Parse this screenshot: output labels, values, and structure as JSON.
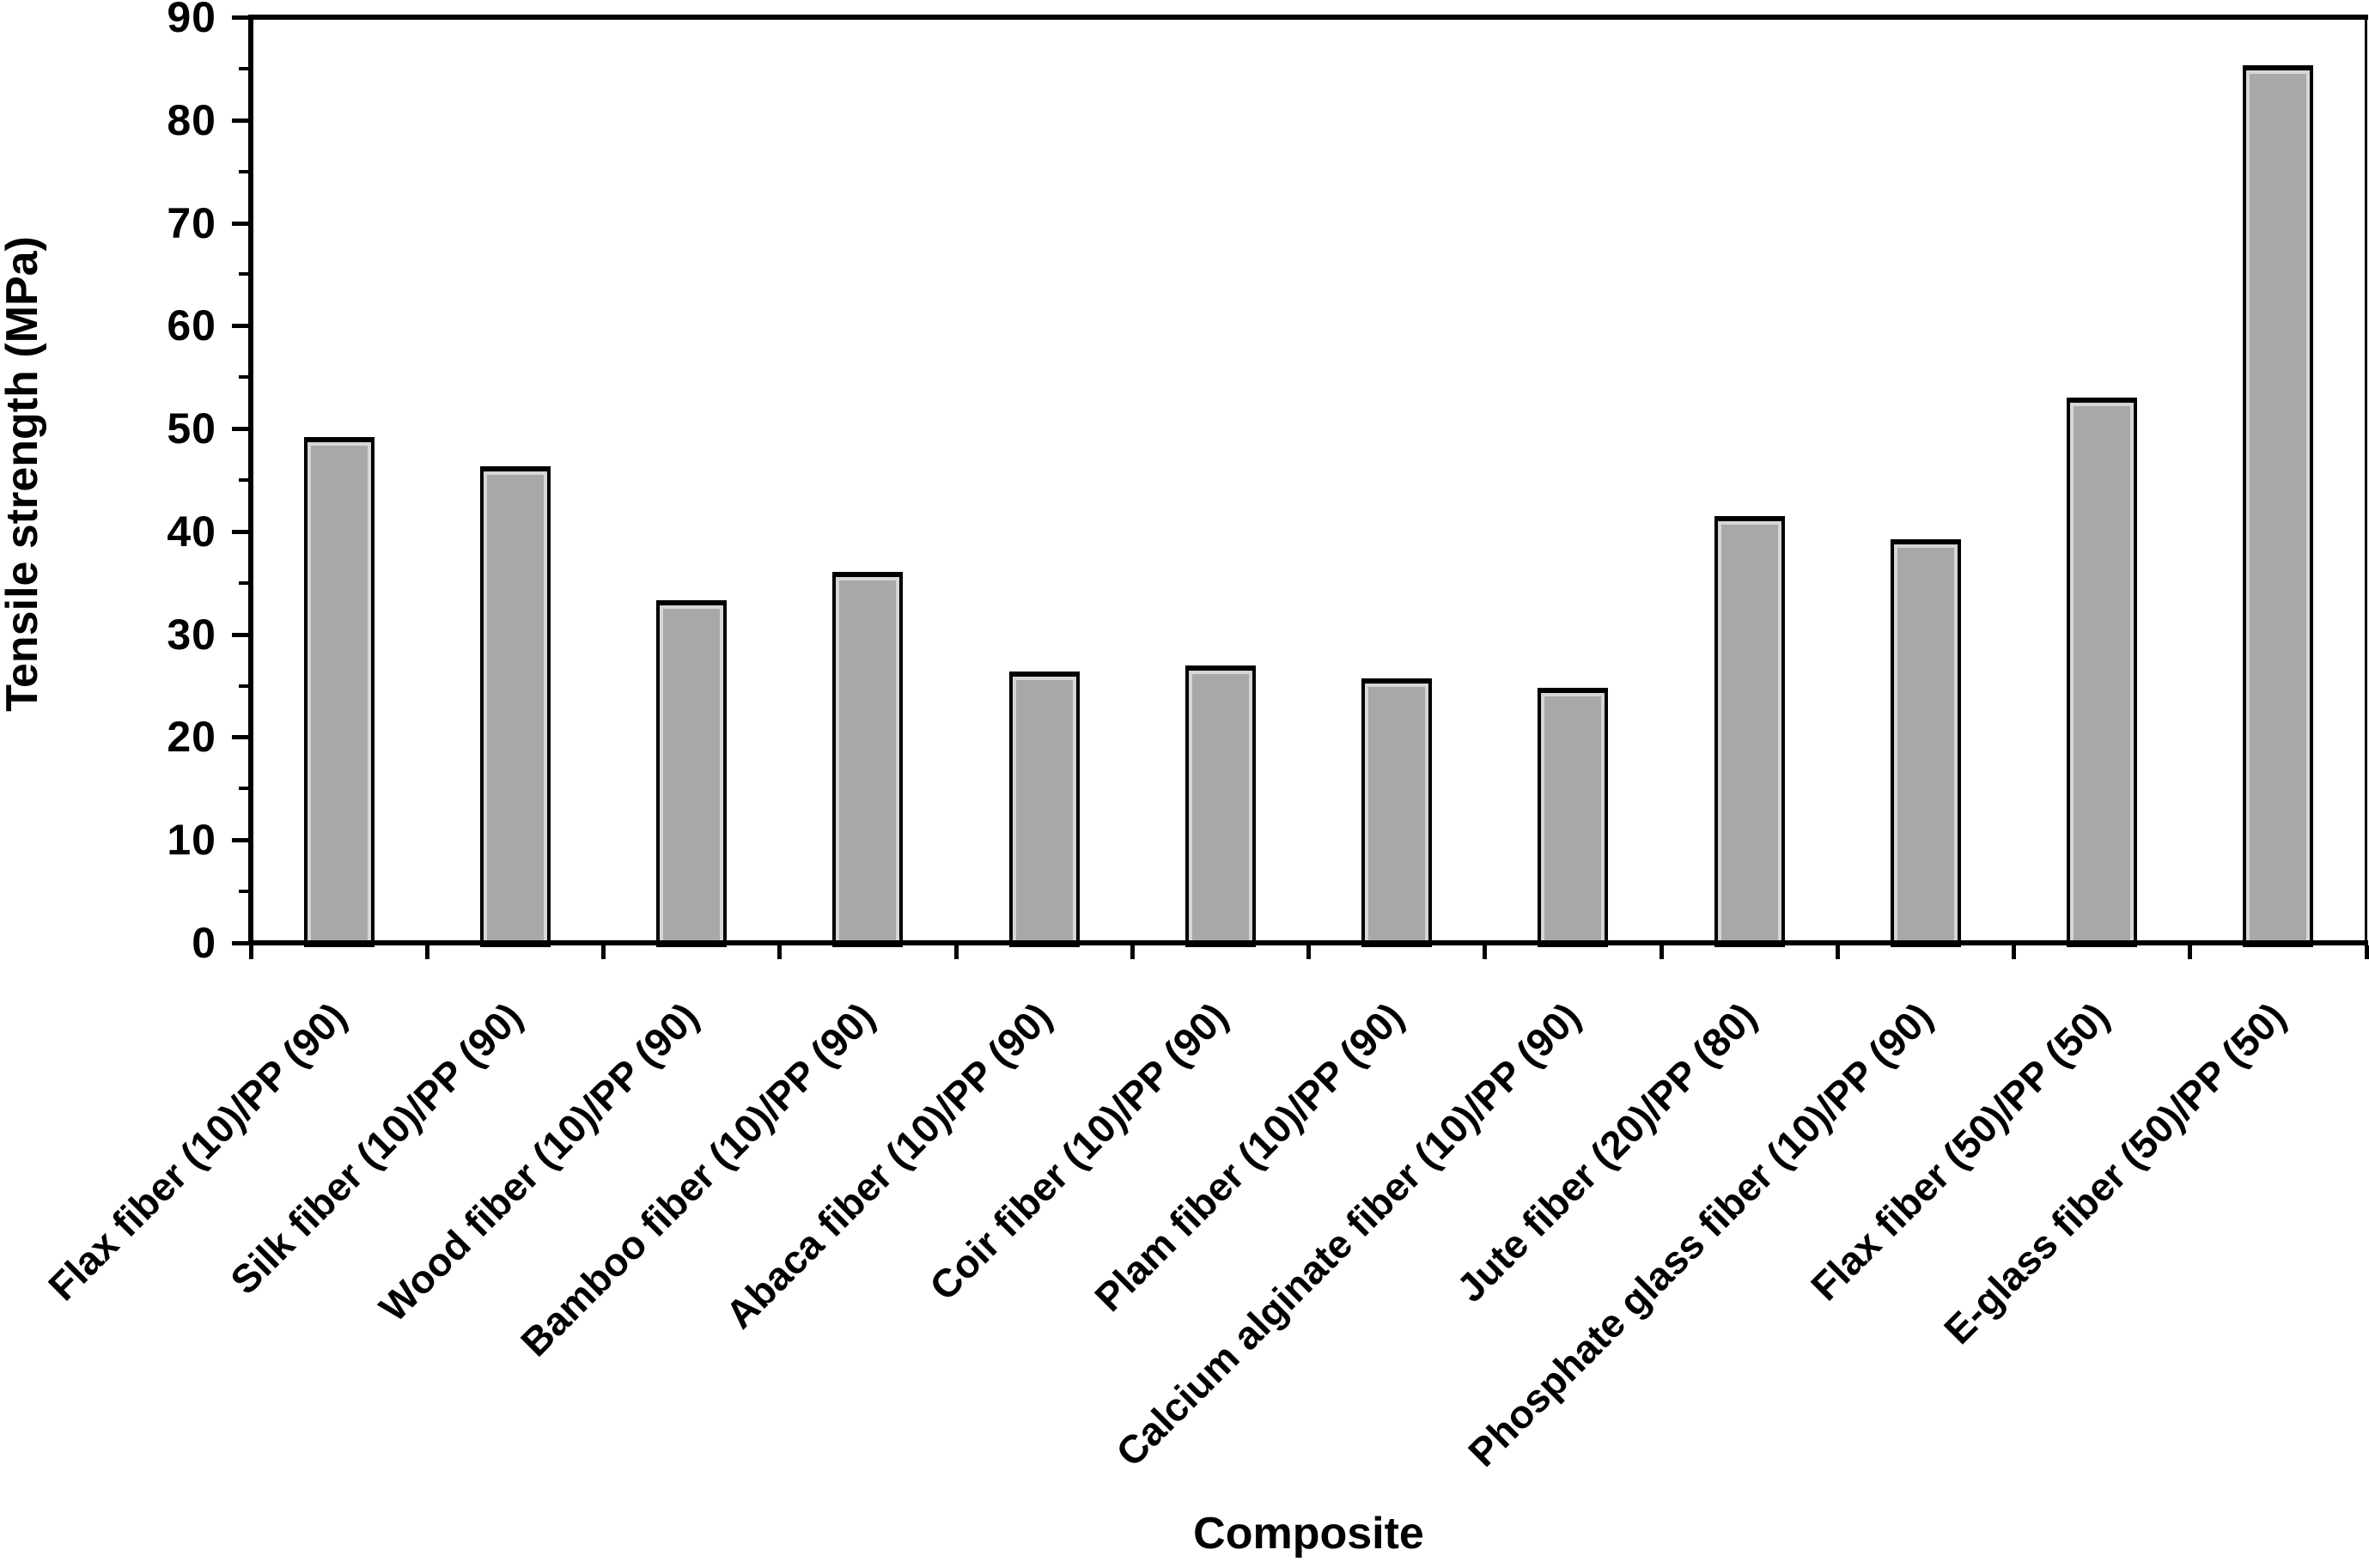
{
  "chart_data": {
    "type": "bar",
    "title": "",
    "xlabel": "Composite",
    "ylabel": "Tensile strength (MPa)",
    "ylim": [
      0,
      90
    ],
    "yticks": [
      0,
      10,
      20,
      30,
      40,
      50,
      60,
      70,
      80,
      90
    ],
    "ytick_major_step": 10,
    "ytick_minor_step": 5,
    "grid": false,
    "legend_position": "none",
    "categories": [
      "Flax fiber (10)/PP (90)",
      "Silk fiber (10)/PP (90)",
      "Wood fiber (10)/PP (90)",
      "Bamboo fiber (10)/PP (90)",
      "Abaca fiber (10)/PP (90)",
      "Coir fiber (10)/PP (90)",
      "Plam fiber (10)/PP (90)",
      "Calcium alginate fiber (10)/PP (90)",
      "Jute fiber (20)/PP (80)",
      "Phosphate glass fiber (10)/PP (90)",
      "Flax fiber (50)/PP (50)",
      "E-glass fiber (50)/PP (50)"
    ],
    "values": [
      49.2,
      46.3,
      33.3,
      36.1,
      26.4,
      27.0,
      25.7,
      24.8,
      41.5,
      39.2,
      53.0,
      85.3
    ],
    "colors": {
      "bar_fill": "#a8a8a8",
      "bar_inner_highlight": "#d6d6d6",
      "bar_border": "#000000",
      "axis": "#000000",
      "text": "#000000",
      "background": "#ffffff"
    }
  }
}
